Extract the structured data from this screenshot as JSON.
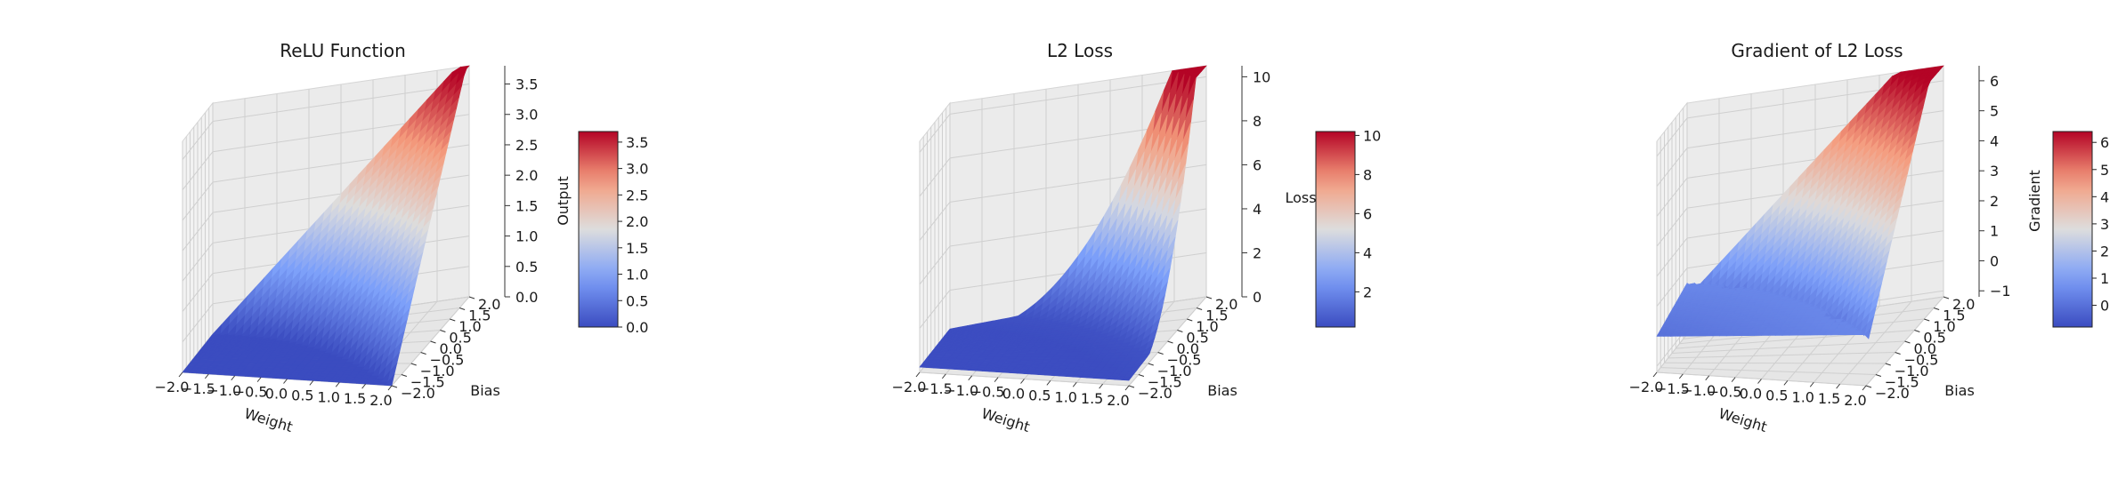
{
  "chart_data": [
    {
      "type": "surface3d",
      "title": "ReLU Function",
      "xlabel": "Weight",
      "ylabel": "Bias",
      "zlabel": "Output",
      "function": "relu",
      "x": [
        -2.0,
        2.0
      ],
      "y": [
        -2.0,
        2.0
      ],
      "zlim": [
        0,
        3.8
      ],
      "xticks": [
        "−2.0",
        "−1.5",
        "−1.0",
        "−0.5",
        "0.0",
        "0.5",
        "1.0",
        "1.5",
        "2.0"
      ],
      "yticks": [
        "−2.0",
        "−1.5",
        "−1.0",
        "−0.5",
        "0.0",
        "0.5",
        "1.0",
        "1.5",
        "2.0"
      ],
      "zticks": [
        0,
        0.5,
        1.0,
        1.5,
        2.0,
        2.5,
        3.0,
        3.5
      ],
      "zticklabels": [
        "0.0",
        "0.5",
        "1.0",
        "1.5",
        "2.0",
        "2.5",
        "3.0",
        "3.5"
      ],
      "colorbar": {
        "range": [
          0,
          3.7
        ],
        "ticks": [
          0,
          0.5,
          1.0,
          1.5,
          2.0,
          2.5,
          3.0,
          3.5
        ],
        "ticklabels": [
          "0.0",
          "0.5",
          "1.0",
          "1.5",
          "2.0",
          "2.5",
          "3.0",
          "3.5"
        ]
      },
      "colormap": "coolwarm",
      "grid": true
    },
    {
      "type": "surface3d",
      "title": "L2 Loss",
      "xlabel": "Weight",
      "ylabel": "Bias",
      "zlabel": "Loss",
      "function": "l2",
      "x": [
        -2.0,
        2.0
      ],
      "y": [
        -2.0,
        2.0
      ],
      "zlim": [
        0,
        10.5
      ],
      "xticks": [
        "−2.0",
        "−1.5",
        "−1.0",
        "−0.5",
        "0.0",
        "0.5",
        "1.0",
        "1.5",
        "2.0"
      ],
      "yticks": [
        "−2.0",
        "−1.5",
        "−1.0",
        "−0.5",
        "0.0",
        "0.5",
        "1.0",
        "1.5",
        "2.0"
      ],
      "zticks": [
        0,
        2,
        4,
        6,
        8,
        10
      ],
      "zticklabels": [
        "0",
        "2",
        "4",
        "6",
        "8",
        "10"
      ],
      "colorbar": {
        "range": [
          0.2,
          10.2
        ],
        "ticks": [
          2,
          4,
          6,
          8,
          10
        ],
        "ticklabels": [
          "2",
          "4",
          "6",
          "8",
          "10"
        ]
      },
      "colormap": "coolwarm",
      "grid": true
    },
    {
      "type": "surface3d",
      "title": "Gradient of L2 Loss",
      "xlabel": "Weight",
      "ylabel": "Bias",
      "zlabel": "Gradient",
      "function": "l2_gradient",
      "x": [
        -2.0,
        2.0
      ],
      "y": [
        -2.0,
        2.0
      ],
      "zlim": [
        -1.2,
        6.5
      ],
      "xticks": [
        "−2.0",
        "−1.5",
        "−1.0",
        "−0.5",
        "0.0",
        "0.5",
        "1.0",
        "1.5",
        "2.0"
      ],
      "yticks": [
        "−2.0",
        "−1.5",
        "−1.0",
        "−0.5",
        "0.0",
        "0.5",
        "1.0",
        "1.5",
        "2.0"
      ],
      "zticks": [
        -1,
        0,
        1,
        2,
        3,
        4,
        5,
        6
      ],
      "zticklabels": [
        "−1",
        "0",
        "1",
        "2",
        "3",
        "4",
        "5",
        "6"
      ],
      "colorbar": {
        "range": [
          -0.8,
          6.4
        ],
        "ticks": [
          0,
          1,
          2,
          3,
          4,
          5,
          6
        ],
        "ticklabels": [
          "0",
          "1",
          "2",
          "3",
          "4",
          "5",
          "6"
        ]
      },
      "colormap": "coolwarm",
      "grid": true
    }
  ]
}
